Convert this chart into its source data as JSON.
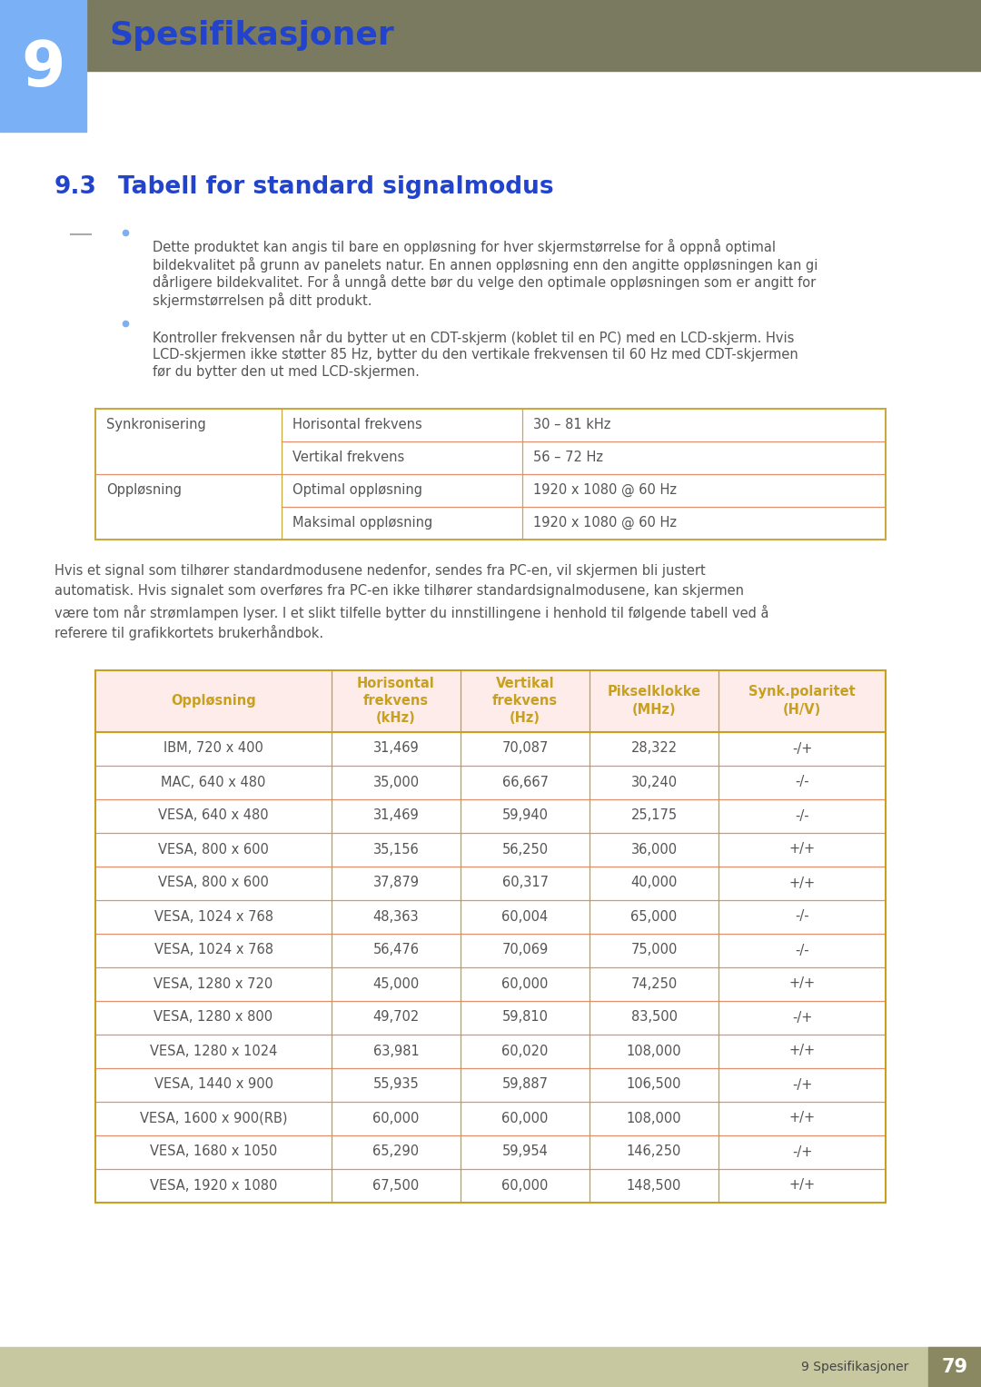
{
  "page_bg": "#ffffff",
  "header_bg": "#7a7a60",
  "header_number": "9",
  "header_number_bg": "#7ab0f5",
  "header_title": "Spesifikasjoner",
  "header_title_color": "#2244cc",
  "section_title_num": "9.3",
  "section_title_text": "Tabell for standard signalmodus",
  "section_title_color": "#2244cc",
  "bullet_color": "#7ab0f5",
  "bullet_text_1_lines": [
    "Dette produktet kan angis til bare en oppløsning for hver skjermstørrelse for å oppnå optimal",
    "bildekvalitet på grunn av panelets natur. En annen oppløsning enn den angitte oppløsningen kan gi",
    "dårligere bildekvalitet. For å unngå dette bør du velge den optimale oppløsningen som er angitt for",
    "skjermstørrelsen på ditt produkt."
  ],
  "bullet_text_2_lines": [
    "Kontroller frekvensen når du bytter ut en CDT-skjerm (koblet til en PC) med en LCD-skjerm. Hvis",
    "LCD-skjermen ikke støtter 85 Hz, bytter du den vertikale frekvensen til 60 Hz med CDT-skjermen",
    "før du bytter den ut med LCD-skjermen."
  ],
  "dash_color": "#aaaaaa",
  "table1_border_color": "#c8a840",
  "table1_line_color": "#e09070",
  "table1_data": [
    [
      "Synkronisering",
      "Horisontal frekvens",
      "30 – 81 kHz"
    ],
    [
      "",
      "Vertikal frekvens",
      "56 – 72 Hz"
    ],
    [
      "Oppløsning",
      "Optimal oppløsning",
      "1920 x 1080 @ 60 Hz"
    ],
    [
      "",
      "Maksimal oppløsning",
      "1920 x 1080 @ 60 Hz"
    ]
  ],
  "paragraph_lines": [
    "Hvis et signal som tilhører standardmodusene nedenfor, sendes fra PC-en, vil skjermen bli justert",
    "automatisk. Hvis signalet som overføres fra PC-en ikke tilhører standardsignalmodusene, kan skjermen",
    "være tom når strømlampen lyser. I et slikt tilfelle bytter du innstillingene i henhold til følgende tabell ved å",
    "referere til grafikkortets brukerhåndbok."
  ],
  "table2_header_bg": "#fdecea",
  "table2_header_text_color": "#c8a020",
  "table2_border_color": "#c8a020",
  "table2_line_color": "#e09070",
  "table2_headers": [
    "Oppløsning",
    "Horisontal\nfrekvens\n(kHz)",
    "Vertikal\nfrekvens\n(Hz)",
    "Pikselklokke\n(MHz)",
    "Synk.polaritet\n(H/V)"
  ],
  "table2_data": [
    [
      "IBM, 720 x 400",
      "31,469",
      "70,087",
      "28,322",
      "-/+"
    ],
    [
      "MAC, 640 x 480",
      "35,000",
      "66,667",
      "30,240",
      "-/-"
    ],
    [
      "VESA, 640 x 480",
      "31,469",
      "59,940",
      "25,175",
      "-/-"
    ],
    [
      "VESA, 800 x 600",
      "35,156",
      "56,250",
      "36,000",
      "+/+"
    ],
    [
      "VESA, 800 x 600",
      "37,879",
      "60,317",
      "40,000",
      "+/+"
    ],
    [
      "VESA, 1024 x 768",
      "48,363",
      "60,004",
      "65,000",
      "-/-"
    ],
    [
      "VESA, 1024 x 768",
      "56,476",
      "70,069",
      "75,000",
      "-/-"
    ],
    [
      "VESA, 1280 x 720",
      "45,000",
      "60,000",
      "74,250",
      "+/+"
    ],
    [
      "VESA, 1280 x 800",
      "49,702",
      "59,810",
      "83,500",
      "-/+"
    ],
    [
      "VESA, 1280 x 1024",
      "63,981",
      "60,020",
      "108,000",
      "+/+"
    ],
    [
      "VESA, 1440 x 900",
      "55,935",
      "59,887",
      "106,500",
      "-/+"
    ],
    [
      "VESA, 1600 x 900(RB)",
      "60,000",
      "60,000",
      "108,000",
      "+/+"
    ],
    [
      "VESA, 1680 x 1050",
      "65,290",
      "59,954",
      "146,250",
      "-/+"
    ],
    [
      "VESA, 1920 x 1080",
      "67,500",
      "60,000",
      "148,500",
      "+/+"
    ]
  ],
  "footer_text": "9 Spesifikasjoner",
  "footer_page": "79",
  "footer_bg": "#c8c8a0",
  "footer_num_bg": "#8a8860",
  "text_color": "#555555",
  "text_color_dark": "#444444"
}
